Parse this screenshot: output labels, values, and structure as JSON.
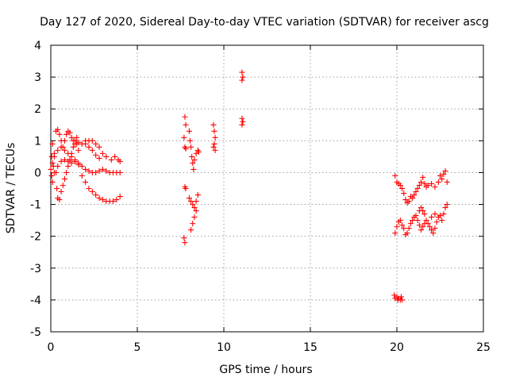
{
  "chart_data": {
    "type": "scatter",
    "title": "Day 127 of 2020, Sidereal Day-to-day VTEC variation (SDTVAR) for receiver ascg",
    "xlabel": "GPS time / hours",
    "ylabel": "SDTVAR / TECUs",
    "xlim": [
      0,
      25
    ],
    "ylim": [
      -5,
      4
    ],
    "xticks": [
      0,
      5,
      10,
      15,
      20,
      25
    ],
    "yticks": [
      -5,
      -4,
      -3,
      -2,
      -1,
      0,
      1,
      2,
      3,
      4
    ],
    "grid": true,
    "marker": "+",
    "series": [
      {
        "name": "early-morning arcs",
        "color": "#ff0000",
        "points": [
          [
            0.0,
            0.1
          ],
          [
            0.05,
            0.5
          ],
          [
            0.1,
            0.9
          ],
          [
            0.05,
            -0.1
          ],
          [
            0.1,
            -0.3
          ],
          [
            0.15,
            0.2
          ],
          [
            0.2,
            0.6
          ],
          [
            0.3,
            0.0
          ],
          [
            0.35,
            -0.5
          ],
          [
            0.4,
            -0.8
          ],
          [
            0.5,
            -0.85
          ],
          [
            0.6,
            -0.6
          ],
          [
            0.7,
            -0.4
          ],
          [
            0.8,
            -0.2
          ],
          [
            0.9,
            0.0
          ],
          [
            1.0,
            0.2
          ],
          [
            1.1,
            0.4
          ],
          [
            1.2,
            0.6
          ],
          [
            1.3,
            0.8
          ],
          [
            1.4,
            1.0
          ],
          [
            1.5,
            1.1
          ],
          [
            0.3,
            1.3
          ],
          [
            0.4,
            1.35
          ],
          [
            0.5,
            1.2
          ],
          [
            0.6,
            1.0
          ],
          [
            0.7,
            0.8
          ],
          [
            0.8,
            1.0
          ],
          [
            0.9,
            1.2
          ],
          [
            1.0,
            1.3
          ],
          [
            1.1,
            1.25
          ],
          [
            1.2,
            1.1
          ],
          [
            1.3,
            1.0
          ],
          [
            1.4,
            0.9
          ],
          [
            1.5,
            0.9
          ],
          [
            1.6,
            0.95
          ],
          [
            2.0,
            1.0
          ],
          [
            2.2,
            1.0
          ],
          [
            2.4,
            1.0
          ],
          [
            2.6,
            0.9
          ],
          [
            2.8,
            0.8
          ],
          [
            3.0,
            0.6
          ],
          [
            3.2,
            0.5
          ],
          [
            3.5,
            0.4
          ],
          [
            3.7,
            0.5
          ],
          [
            3.9,
            0.4
          ],
          [
            4.0,
            0.35
          ],
          [
            0.2,
            0.0
          ],
          [
            0.4,
            0.2
          ],
          [
            0.6,
            0.35
          ],
          [
            0.8,
            0.4
          ],
          [
            1.0,
            0.35
          ],
          [
            1.2,
            0.3
          ],
          [
            1.4,
            0.35
          ],
          [
            1.6,
            0.3
          ],
          [
            1.8,
            0.2
          ],
          [
            2.0,
            0.1
          ],
          [
            2.2,
            0.05
          ],
          [
            2.4,
            0.0
          ],
          [
            2.6,
            0.0
          ],
          [
            2.8,
            0.05
          ],
          [
            3.0,
            0.1
          ],
          [
            3.2,
            0.05
          ],
          [
            3.4,
            0.0
          ],
          [
            3.6,
            0.0
          ],
          [
            3.8,
            0.0
          ],
          [
            4.0,
            0.0
          ],
          [
            0.1,
            0.3
          ],
          [
            0.2,
            0.5
          ],
          [
            0.4,
            0.7
          ],
          [
            0.6,
            0.8
          ],
          [
            0.8,
            0.7
          ],
          [
            1.0,
            0.6
          ],
          [
            1.2,
            0.5
          ],
          [
            1.4,
            0.4
          ],
          [
            1.6,
            0.25
          ],
          [
            1.8,
            -0.1
          ],
          [
            2.0,
            -0.3
          ],
          [
            2.2,
            -0.5
          ],
          [
            2.4,
            -0.6
          ],
          [
            2.6,
            -0.7
          ],
          [
            2.8,
            -0.8
          ],
          [
            3.0,
            -0.85
          ],
          [
            3.2,
            -0.9
          ],
          [
            3.4,
            -0.9
          ],
          [
            3.6,
            -0.9
          ],
          [
            3.8,
            -0.85
          ],
          [
            4.0,
            -0.75
          ],
          [
            1.6,
            0.7
          ],
          [
            1.8,
            0.9
          ],
          [
            2.0,
            0.9
          ],
          [
            2.2,
            0.8
          ],
          [
            2.4,
            0.7
          ],
          [
            2.6,
            0.55
          ],
          [
            2.8,
            0.45
          ]
        ]
      },
      {
        "name": "midday clusters",
        "color": "#ff0000",
        "points": [
          [
            7.75,
            1.75
          ],
          [
            7.8,
            1.5
          ],
          [
            7.7,
            1.1
          ],
          [
            7.75,
            0.8
          ],
          [
            7.8,
            0.75
          ],
          [
            7.75,
            -0.45
          ],
          [
            7.8,
            -0.5
          ],
          [
            7.7,
            -2.05
          ],
          [
            7.75,
            -2.2
          ],
          [
            8.0,
            1.3
          ],
          [
            8.05,
            1.0
          ],
          [
            8.1,
            0.8
          ],
          [
            8.15,
            0.5
          ],
          [
            8.2,
            0.3
          ],
          [
            8.25,
            0.1
          ],
          [
            8.3,
            0.4
          ],
          [
            8.4,
            0.6
          ],
          [
            8.5,
            0.7
          ],
          [
            8.55,
            0.65
          ],
          [
            8.0,
            -0.8
          ],
          [
            8.1,
            -0.9
          ],
          [
            8.2,
            -1.0
          ],
          [
            8.3,
            -1.1
          ],
          [
            8.4,
            -0.9
          ],
          [
            8.5,
            -0.7
          ],
          [
            8.4,
            -1.2
          ],
          [
            8.3,
            -1.4
          ],
          [
            8.2,
            -1.6
          ],
          [
            8.1,
            -1.8
          ],
          [
            9.4,
            1.5
          ],
          [
            9.45,
            1.3
          ],
          [
            9.5,
            1.1
          ],
          [
            9.45,
            0.9
          ],
          [
            9.5,
            0.7
          ],
          [
            9.4,
            0.8
          ],
          [
            11.05,
            3.15
          ],
          [
            11.1,
            3.0
          ],
          [
            11.05,
            2.9
          ],
          [
            11.05,
            1.7
          ],
          [
            11.1,
            1.6
          ],
          [
            11.05,
            1.5
          ]
        ]
      },
      {
        "name": "evening arcs",
        "color": "#ff0000",
        "points": [
          [
            19.9,
            -0.1
          ],
          [
            20.0,
            -0.3
          ],
          [
            20.1,
            -0.35
          ],
          [
            20.2,
            -0.4
          ],
          [
            20.3,
            -0.5
          ],
          [
            20.4,
            -0.65
          ],
          [
            20.5,
            -0.85
          ],
          [
            20.6,
            -0.95
          ],
          [
            20.7,
            -0.9
          ],
          [
            20.8,
            -0.75
          ],
          [
            20.9,
            -0.8
          ],
          [
            21.0,
            -0.7
          ],
          [
            21.1,
            -0.6
          ],
          [
            21.2,
            -0.5
          ],
          [
            21.3,
            -0.4
          ],
          [
            21.4,
            -0.3
          ],
          [
            21.5,
            -0.15
          ],
          [
            21.6,
            -0.35
          ],
          [
            21.7,
            -0.45
          ],
          [
            21.8,
            -0.4
          ],
          [
            22.0,
            -0.35
          ],
          [
            22.2,
            -0.45
          ],
          [
            22.4,
            -0.3
          ],
          [
            22.5,
            -0.1
          ],
          [
            22.6,
            -0.2
          ],
          [
            22.7,
            -0.05
          ],
          [
            22.8,
            0.05
          ],
          [
            22.9,
            -0.3
          ],
          [
            19.9,
            -1.9
          ],
          [
            20.0,
            -1.7
          ],
          [
            20.1,
            -1.55
          ],
          [
            20.2,
            -1.5
          ],
          [
            20.3,
            -1.65
          ],
          [
            20.4,
            -1.75
          ],
          [
            20.5,
            -1.95
          ],
          [
            20.6,
            -1.9
          ],
          [
            20.7,
            -1.75
          ],
          [
            20.8,
            -1.6
          ],
          [
            20.9,
            -1.5
          ],
          [
            21.0,
            -1.4
          ],
          [
            21.1,
            -1.35
          ],
          [
            21.2,
            -1.5
          ],
          [
            21.3,
            -1.65
          ],
          [
            21.4,
            -1.8
          ],
          [
            21.5,
            -1.7
          ],
          [
            21.6,
            -1.6
          ],
          [
            21.7,
            -1.5
          ],
          [
            21.8,
            -1.6
          ],
          [
            21.9,
            -1.7
          ],
          [
            22.0,
            -1.8
          ],
          [
            22.1,
            -1.9
          ],
          [
            22.2,
            -1.75
          ],
          [
            22.3,
            -1.55
          ],
          [
            22.4,
            -1.4
          ],
          [
            22.5,
            -1.35
          ],
          [
            22.6,
            -1.5
          ],
          [
            22.7,
            -1.3
          ],
          [
            22.8,
            -1.1
          ],
          [
            22.9,
            -1.0
          ],
          [
            21.3,
            -1.2
          ],
          [
            21.4,
            -1.1
          ],
          [
            21.5,
            -1.2
          ],
          [
            21.6,
            -1.3
          ],
          [
            22.0,
            -1.4
          ],
          [
            22.2,
            -1.3
          ],
          [
            19.85,
            -3.85
          ],
          [
            19.9,
            -3.95
          ],
          [
            20.0,
            -3.9
          ],
          [
            20.05,
            -4.0
          ],
          [
            20.1,
            -3.95
          ],
          [
            20.2,
            -4.0
          ],
          [
            20.25,
            -3.9
          ],
          [
            20.3,
            -4.0
          ]
        ]
      }
    ]
  }
}
